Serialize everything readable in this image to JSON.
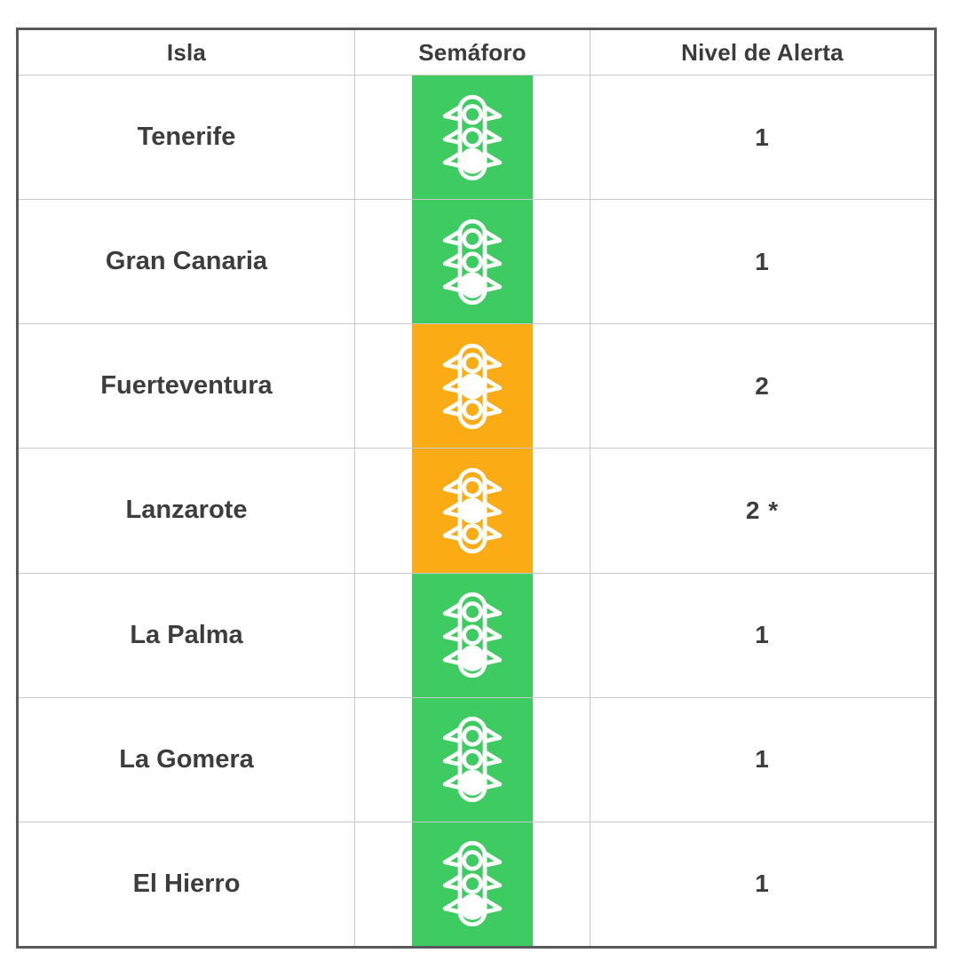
{
  "table": {
    "headers": [
      "Isla",
      "Semáforo",
      "Nivel de Alerta"
    ],
    "rows": [
      {
        "island": "Tenerife",
        "status": "green",
        "active_light": "bottom",
        "alert": "1"
      },
      {
        "island": "Gran Canaria",
        "status": "green",
        "active_light": "bottom",
        "alert": "1"
      },
      {
        "island": "Fuerteventura",
        "status": "orange",
        "active_light": "middle",
        "alert": "2"
      },
      {
        "island": "Lanzarote",
        "status": "orange",
        "active_light": "middle",
        "alert": "2 *"
      },
      {
        "island": "La Palma",
        "status": "green",
        "active_light": "bottom",
        "alert": "1"
      },
      {
        "island": "La Gomera",
        "status": "green",
        "active_light": "bottom",
        "alert": "1"
      },
      {
        "island": "El Hierro",
        "status": "green",
        "active_light": "bottom",
        "alert": "1"
      }
    ],
    "status_colors": {
      "green": "#3ecb62",
      "orange": "#fbac15"
    },
    "icon_name": "traffic-light-icon",
    "border_color": "#58595b",
    "grid_line_color": "#c9c9c9",
    "text_color": "#3d3d3d"
  },
  "chart_data": {
    "type": "table",
    "columns": [
      "Isla",
      "Semáforo",
      "Nivel de Alerta"
    ],
    "rows": [
      [
        "Tenerife",
        "semáforo verde",
        "1"
      ],
      [
        "Gran Canaria",
        "semáforo verde",
        "1"
      ],
      [
        "Fuerteventura",
        "semáforo naranja",
        "2"
      ],
      [
        "Lanzarote",
        "semáforo naranja",
        "2 *"
      ],
      [
        "La Palma",
        "semáforo verde",
        "1"
      ],
      [
        "La Gomera",
        "semáforo verde",
        "1"
      ],
      [
        "El Hierro",
        "semáforo verde",
        "1"
      ]
    ]
  }
}
